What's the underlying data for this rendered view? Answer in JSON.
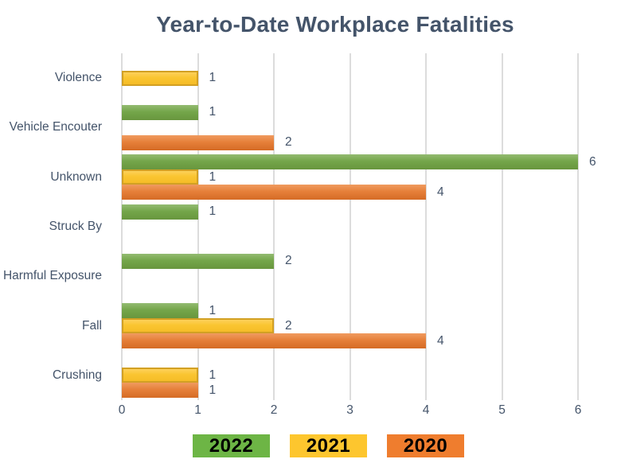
{
  "chart_data": {
    "type": "bar",
    "orientation": "horizontal",
    "title": "Year-to-Date Workplace Fatalities",
    "categories": [
      "Violence",
      "Vehicle Encouter",
      "Unknown",
      "Struck By",
      "Harmful Exposure",
      "Fall",
      "Crushing"
    ],
    "series": [
      {
        "name": "2022",
        "fill": "#74A64A",
        "fill_light": "#94BB72",
        "fill_dark": "#68963E",
        "border": null,
        "legend_fill": "#6DB545",
        "values": [
          0,
          1,
          6,
          1,
          2,
          1,
          0
        ]
      },
      {
        "name": "2021",
        "fill": "#FAC531",
        "fill_light": "#FDD15A",
        "fill_dark": "#F5BC27",
        "border": "#D2A023",
        "legend_fill": "#FDC62E",
        "values": [
          1,
          0,
          1,
          0,
          0,
          2,
          1
        ]
      },
      {
        "name": "2020",
        "fill": "#E6803A",
        "fill_light": "#F09B60",
        "fill_dark": "#D56B25",
        "border": null,
        "legend_fill": "#EF7D2E",
        "values": [
          0,
          2,
          4,
          0,
          0,
          4,
          1
        ]
      }
    ],
    "xlim": [
      0,
      6
    ],
    "xticks": [
      0,
      1,
      2,
      3,
      4,
      5,
      6
    ],
    "grid": true,
    "value_labels": true,
    "legend_position": "bottom",
    "text_color": "#44546A",
    "gridline_color": "#DCDCDC"
  }
}
